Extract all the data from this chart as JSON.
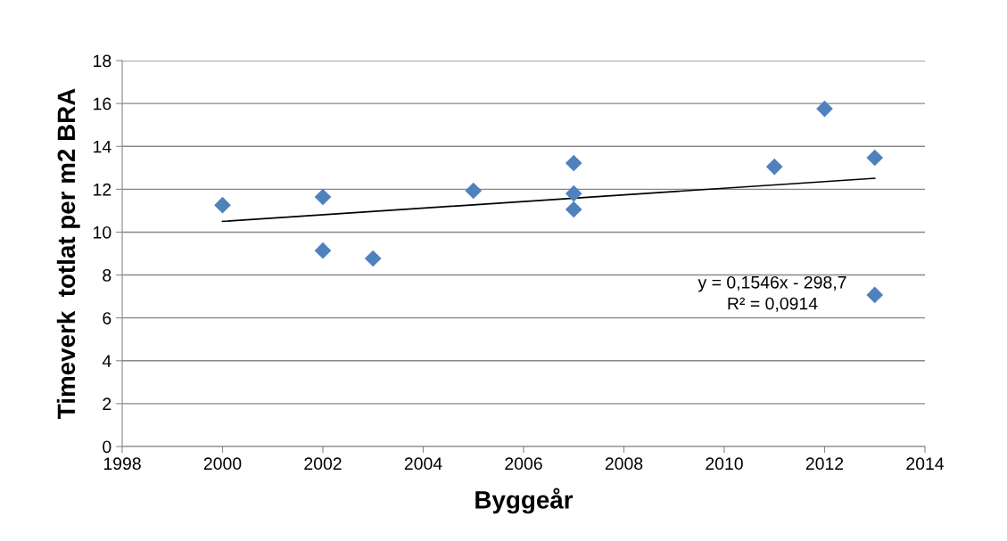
{
  "chart_data": {
    "type": "scatter",
    "xlabel": "Byggeår",
    "ylabel": "Timeverk  totlat per m2 BRA",
    "xlim": [
      1998,
      2014
    ],
    "xticks": [
      1998,
      2000,
      2002,
      2004,
      2006,
      2008,
      2010,
      2012,
      2014
    ],
    "ylim": [
      0,
      18
    ],
    "yticks": [
      0,
      2,
      4,
      6,
      8,
      10,
      12,
      14,
      16,
      18
    ],
    "grid": "y",
    "legend": false,
    "series": [
      {
        "marker": "diamond",
        "color": "#4f81bd",
        "x": [
          2000,
          2002,
          2002,
          2003,
          2005,
          2007,
          2007,
          2007,
          2011,
          2012,
          2013,
          2013
        ],
        "values": [
          11.26,
          11.64,
          9.14,
          8.77,
          11.93,
          13.22,
          11.8,
          11.06,
          13.05,
          15.75,
          13.47,
          7.07
        ]
      },
      {
        "type": "line",
        "color": "#000000",
        "x": [
          2000,
          2013
        ],
        "values": [
          10.5,
          12.51
        ],
        "line_style": "solid"
      }
    ],
    "annotations": [
      "y = 0,1546x - 298,7",
      "R² = 0,0914"
    ]
  }
}
